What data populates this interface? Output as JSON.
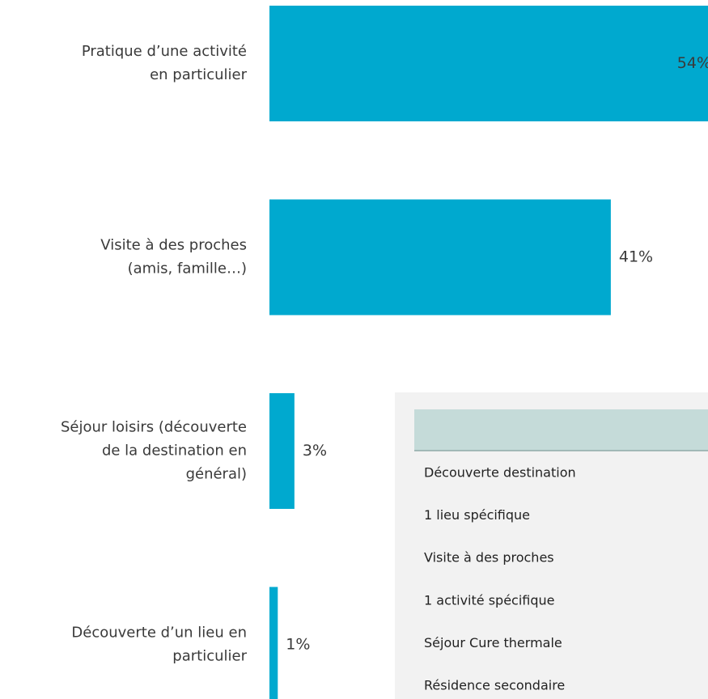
{
  "chart_data": {
    "type": "bar",
    "orientation": "horizontal",
    "color": "#00a9cf",
    "categories": [
      [
        "Pratique d’une activité",
        "en particulier"
      ],
      [
        "Visite à des proches",
        "(amis, famille…)"
      ],
      [
        "Séjour loisirs (découverte",
        "de la destination en",
        "général)"
      ],
      [
        "Découverte d’un lieu en",
        "particulier"
      ]
    ],
    "values": [
      54,
      41,
      3,
      1
    ],
    "value_labels": [
      "54%",
      "41%",
      "3%",
      "1%"
    ]
  },
  "table": {
    "rows": [
      "Découverte destination",
      "1 lieu spécifique",
      "Visite à des proches",
      "1 activité spécifique",
      "Séjour Cure thermale",
      "Résidence secondaire"
    ]
  }
}
